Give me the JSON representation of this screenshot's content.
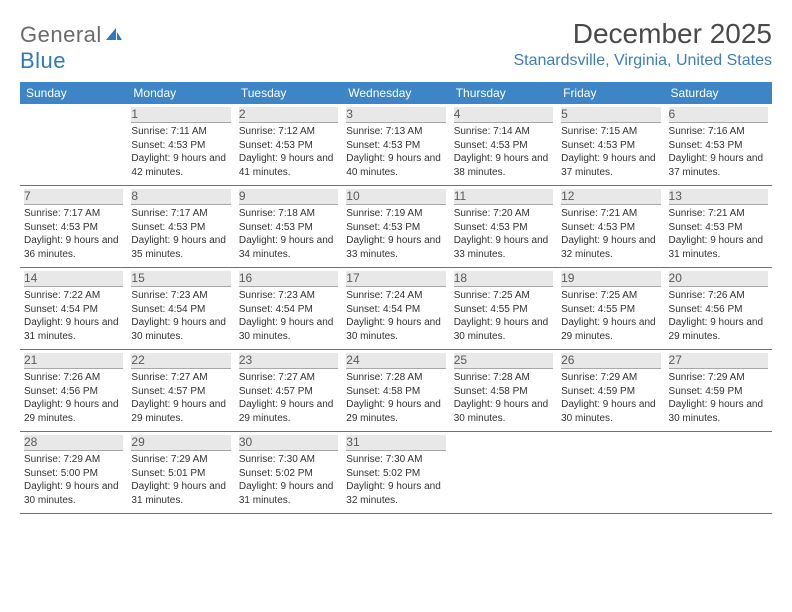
{
  "logo": {
    "text1": "General",
    "text2": "Blue"
  },
  "title": "December 2025",
  "location": "Stanardsville, Virginia, United States",
  "header_bg": "#3d85c6",
  "accent_color": "#3d7fb8",
  "weekdays": [
    "Sunday",
    "Monday",
    "Tuesday",
    "Wednesday",
    "Thursday",
    "Friday",
    "Saturday"
  ],
  "weeks": [
    [
      {
        "num": "",
        "sunrise": "",
        "sunset": "",
        "daylight": ""
      },
      {
        "num": "1",
        "sunrise": "Sunrise: 7:11 AM",
        "sunset": "Sunset: 4:53 PM",
        "daylight": "Daylight: 9 hours and 42 minutes."
      },
      {
        "num": "2",
        "sunrise": "Sunrise: 7:12 AM",
        "sunset": "Sunset: 4:53 PM",
        "daylight": "Daylight: 9 hours and 41 minutes."
      },
      {
        "num": "3",
        "sunrise": "Sunrise: 7:13 AM",
        "sunset": "Sunset: 4:53 PM",
        "daylight": "Daylight: 9 hours and 40 minutes."
      },
      {
        "num": "4",
        "sunrise": "Sunrise: 7:14 AM",
        "sunset": "Sunset: 4:53 PM",
        "daylight": "Daylight: 9 hours and 38 minutes."
      },
      {
        "num": "5",
        "sunrise": "Sunrise: 7:15 AM",
        "sunset": "Sunset: 4:53 PM",
        "daylight": "Daylight: 9 hours and 37 minutes."
      },
      {
        "num": "6",
        "sunrise": "Sunrise: 7:16 AM",
        "sunset": "Sunset: 4:53 PM",
        "daylight": "Daylight: 9 hours and 37 minutes."
      }
    ],
    [
      {
        "num": "7",
        "sunrise": "Sunrise: 7:17 AM",
        "sunset": "Sunset: 4:53 PM",
        "daylight": "Daylight: 9 hours and 36 minutes."
      },
      {
        "num": "8",
        "sunrise": "Sunrise: 7:17 AM",
        "sunset": "Sunset: 4:53 PM",
        "daylight": "Daylight: 9 hours and 35 minutes."
      },
      {
        "num": "9",
        "sunrise": "Sunrise: 7:18 AM",
        "sunset": "Sunset: 4:53 PM",
        "daylight": "Daylight: 9 hours and 34 minutes."
      },
      {
        "num": "10",
        "sunrise": "Sunrise: 7:19 AM",
        "sunset": "Sunset: 4:53 PM",
        "daylight": "Daylight: 9 hours and 33 minutes."
      },
      {
        "num": "11",
        "sunrise": "Sunrise: 7:20 AM",
        "sunset": "Sunset: 4:53 PM",
        "daylight": "Daylight: 9 hours and 33 minutes."
      },
      {
        "num": "12",
        "sunrise": "Sunrise: 7:21 AM",
        "sunset": "Sunset: 4:53 PM",
        "daylight": "Daylight: 9 hours and 32 minutes."
      },
      {
        "num": "13",
        "sunrise": "Sunrise: 7:21 AM",
        "sunset": "Sunset: 4:53 PM",
        "daylight": "Daylight: 9 hours and 31 minutes."
      }
    ],
    [
      {
        "num": "14",
        "sunrise": "Sunrise: 7:22 AM",
        "sunset": "Sunset: 4:54 PM",
        "daylight": "Daylight: 9 hours and 31 minutes."
      },
      {
        "num": "15",
        "sunrise": "Sunrise: 7:23 AM",
        "sunset": "Sunset: 4:54 PM",
        "daylight": "Daylight: 9 hours and 30 minutes."
      },
      {
        "num": "16",
        "sunrise": "Sunrise: 7:23 AM",
        "sunset": "Sunset: 4:54 PM",
        "daylight": "Daylight: 9 hours and 30 minutes."
      },
      {
        "num": "17",
        "sunrise": "Sunrise: 7:24 AM",
        "sunset": "Sunset: 4:54 PM",
        "daylight": "Daylight: 9 hours and 30 minutes."
      },
      {
        "num": "18",
        "sunrise": "Sunrise: 7:25 AM",
        "sunset": "Sunset: 4:55 PM",
        "daylight": "Daylight: 9 hours and 30 minutes."
      },
      {
        "num": "19",
        "sunrise": "Sunrise: 7:25 AM",
        "sunset": "Sunset: 4:55 PM",
        "daylight": "Daylight: 9 hours and 29 minutes."
      },
      {
        "num": "20",
        "sunrise": "Sunrise: 7:26 AM",
        "sunset": "Sunset: 4:56 PM",
        "daylight": "Daylight: 9 hours and 29 minutes."
      }
    ],
    [
      {
        "num": "21",
        "sunrise": "Sunrise: 7:26 AM",
        "sunset": "Sunset: 4:56 PM",
        "daylight": "Daylight: 9 hours and 29 minutes."
      },
      {
        "num": "22",
        "sunrise": "Sunrise: 7:27 AM",
        "sunset": "Sunset: 4:57 PM",
        "daylight": "Daylight: 9 hours and 29 minutes."
      },
      {
        "num": "23",
        "sunrise": "Sunrise: 7:27 AM",
        "sunset": "Sunset: 4:57 PM",
        "daylight": "Daylight: 9 hours and 29 minutes."
      },
      {
        "num": "24",
        "sunrise": "Sunrise: 7:28 AM",
        "sunset": "Sunset: 4:58 PM",
        "daylight": "Daylight: 9 hours and 29 minutes."
      },
      {
        "num": "25",
        "sunrise": "Sunrise: 7:28 AM",
        "sunset": "Sunset: 4:58 PM",
        "daylight": "Daylight: 9 hours and 30 minutes."
      },
      {
        "num": "26",
        "sunrise": "Sunrise: 7:29 AM",
        "sunset": "Sunset: 4:59 PM",
        "daylight": "Daylight: 9 hours and 30 minutes."
      },
      {
        "num": "27",
        "sunrise": "Sunrise: 7:29 AM",
        "sunset": "Sunset: 4:59 PM",
        "daylight": "Daylight: 9 hours and 30 minutes."
      }
    ],
    [
      {
        "num": "28",
        "sunrise": "Sunrise: 7:29 AM",
        "sunset": "Sunset: 5:00 PM",
        "daylight": "Daylight: 9 hours and 30 minutes."
      },
      {
        "num": "29",
        "sunrise": "Sunrise: 7:29 AM",
        "sunset": "Sunset: 5:01 PM",
        "daylight": "Daylight: 9 hours and 31 minutes."
      },
      {
        "num": "30",
        "sunrise": "Sunrise: 7:30 AM",
        "sunset": "Sunset: 5:02 PM",
        "daylight": "Daylight: 9 hours and 31 minutes."
      },
      {
        "num": "31",
        "sunrise": "Sunrise: 7:30 AM",
        "sunset": "Sunset: 5:02 PM",
        "daylight": "Daylight: 9 hours and 32 minutes."
      },
      {
        "num": "",
        "sunrise": "",
        "sunset": "",
        "daylight": ""
      },
      {
        "num": "",
        "sunrise": "",
        "sunset": "",
        "daylight": ""
      },
      {
        "num": "",
        "sunrise": "",
        "sunset": "",
        "daylight": ""
      }
    ]
  ]
}
